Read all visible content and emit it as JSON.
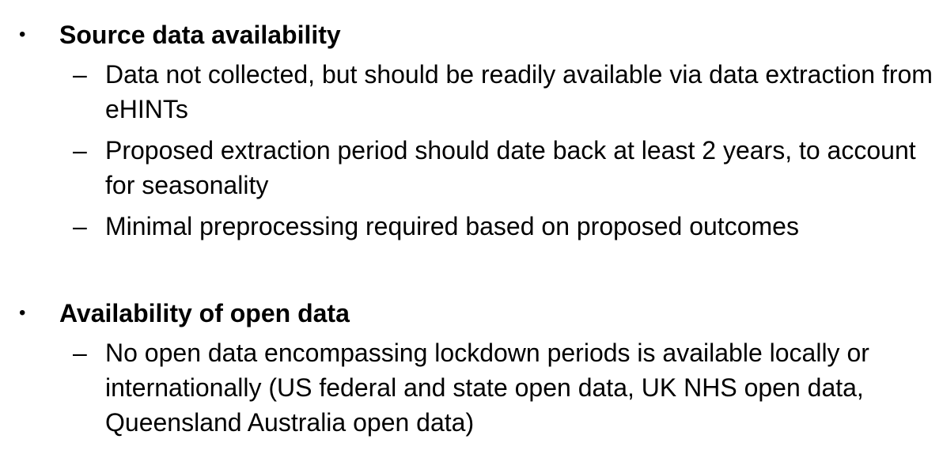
{
  "sections": [
    {
      "heading": "Source data availability",
      "items": [
        "Data not collected, but should be readily available via data extraction from eHINTs",
        "Proposed extraction period should date back at least 2 years, to account for seasonality",
        "Minimal preprocessing required based on proposed outcomes"
      ]
    },
    {
      "heading": "Availability of open data",
      "items": [
        "No open data encompassing lockdown periods is available locally or internationally (US federal and state open data, UK NHS open data, Queensland Australia open data)"
      ]
    }
  ],
  "markers": {
    "bullet": "•",
    "dash": "–"
  }
}
